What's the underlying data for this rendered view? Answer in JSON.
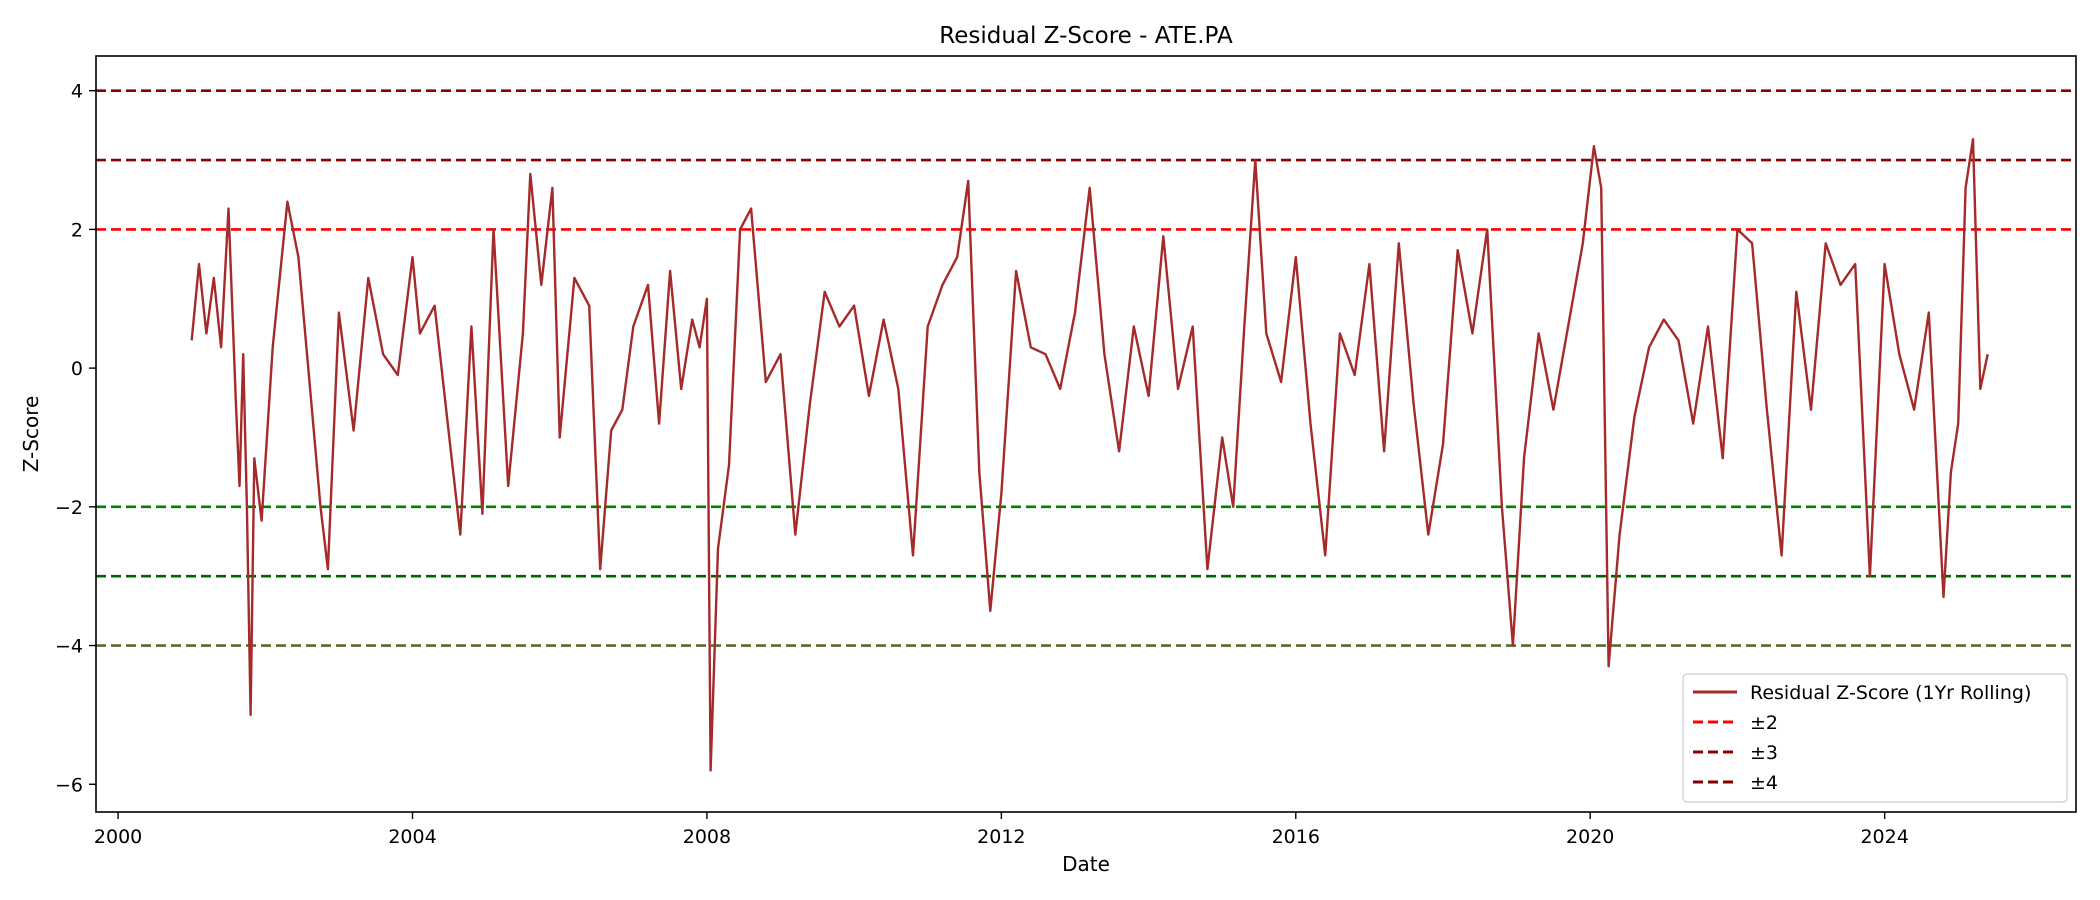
{
  "chart_data": {
    "type": "line",
    "title": "Residual Z-Score - ATE.PA",
    "xlabel": "Date",
    "ylabel": "Z-Score",
    "xlim": [
      1999.7,
      2026.6
    ],
    "ylim": [
      -6.4,
      4.5
    ],
    "x_ticks": [
      2000,
      2004,
      2008,
      2012,
      2016,
      2020,
      2024
    ],
    "y_ticks": [
      -6,
      -4,
      -2,
      0,
      2,
      4
    ],
    "y_tick_labels": [
      "−6",
      "−4",
      "−2",
      "0",
      "2",
      "4"
    ],
    "grid": false,
    "legend_placement": "lower-right",
    "series": [
      {
        "name": "Residual Z-Score (1Yr Rolling)",
        "color": "#a52a2a",
        "x": [
          2001.0,
          2001.1,
          2001.2,
          2001.3,
          2001.4,
          2001.5,
          2001.6,
          2001.65,
          2001.7,
          2001.75,
          2001.8,
          2001.85,
          2001.95,
          2002.1,
          2002.3,
          2002.45,
          2002.6,
          2002.75,
          2002.85,
          2003.0,
          2003.2,
          2003.4,
          2003.6,
          2003.8,
          2004.0,
          2004.1,
          2004.3,
          2004.5,
          2004.65,
          2004.8,
          2004.95,
          2005.1,
          2005.3,
          2005.5,
          2005.6,
          2005.75,
          2005.9,
          2006.0,
          2006.2,
          2006.4,
          2006.55,
          2006.7,
          2006.85,
          2007.0,
          2007.2,
          2007.35,
          2007.5,
          2007.65,
          2007.8,
          2007.9,
          2008.0,
          2008.05,
          2008.15,
          2008.3,
          2008.45,
          2008.6,
          2008.8,
          2009.0,
          2009.2,
          2009.4,
          2009.6,
          2009.8,
          2010.0,
          2010.2,
          2010.4,
          2010.6,
          2010.8,
          2011.0,
          2011.2,
          2011.4,
          2011.55,
          2011.7,
          2011.85,
          2012.0,
          2012.2,
          2012.4,
          2012.6,
          2012.8,
          2013.0,
          2013.2,
          2013.4,
          2013.6,
          2013.8,
          2014.0,
          2014.2,
          2014.4,
          2014.6,
          2014.8,
          2015.0,
          2015.15,
          2015.3,
          2015.45,
          2015.6,
          2015.8,
          2016.0,
          2016.2,
          2016.4,
          2016.6,
          2016.8,
          2017.0,
          2017.2,
          2017.4,
          2017.6,
          2017.8,
          2018.0,
          2018.2,
          2018.4,
          2018.6,
          2018.8,
          2018.95,
          2019.1,
          2019.3,
          2019.5,
          2019.7,
          2019.9,
          2020.05,
          2020.15,
          2020.25,
          2020.4,
          2020.6,
          2020.8,
          2021.0,
          2021.2,
          2021.4,
          2021.6,
          2021.8,
          2022.0,
          2022.2,
          2022.4,
          2022.6,
          2022.8,
          2023.0,
          2023.2,
          2023.4,
          2023.6,
          2023.8,
          2024.0,
          2024.2,
          2024.4,
          2024.6,
          2024.8,
          2024.9,
          2025.0,
          2025.1,
          2025.2,
          2025.3,
          2025.4
        ],
        "y": [
          0.4,
          1.5,
          0.5,
          1.3,
          0.3,
          2.3,
          -0.5,
          -1.7,
          0.2,
          -2.0,
          -5.0,
          -1.3,
          -2.2,
          0.3,
          2.4,
          1.6,
          -0.2,
          -2.0,
          -2.9,
          0.8,
          -0.9,
          1.3,
          0.2,
          -0.1,
          1.6,
          0.5,
          0.9,
          -1.0,
          -2.4,
          0.6,
          -2.1,
          2.0,
          -1.7,
          0.5,
          2.8,
          1.2,
          2.6,
          -1.0,
          1.3,
          0.9,
          -2.9,
          -0.9,
          -0.6,
          0.6,
          1.2,
          -0.8,
          1.4,
          -0.3,
          0.7,
          0.3,
          1.0,
          -5.8,
          -2.6,
          -1.4,
          2.0,
          2.3,
          -0.2,
          0.2,
          -2.4,
          -0.5,
          1.1,
          0.6,
          0.9,
          -0.4,
          0.7,
          -0.3,
          -2.7,
          0.6,
          1.2,
          1.6,
          2.7,
          -1.5,
          -3.5,
          -1.8,
          1.4,
          0.3,
          0.2,
          -0.3,
          0.8,
          2.6,
          0.2,
          -1.2,
          0.6,
          -0.4,
          1.9,
          -0.3,
          0.6,
          -2.9,
          -1.0,
          -2.0,
          0.6,
          3.0,
          0.5,
          -0.2,
          1.6,
          -0.8,
          -2.7,
          0.5,
          -0.1,
          1.5,
          -1.2,
          1.8,
          -0.5,
          -2.4,
          -1.1,
          1.7,
          0.5,
          2.0,
          -2.0,
          -4.0,
          -1.3,
          0.5,
          -0.6,
          0.6,
          1.8,
          3.2,
          2.6,
          -4.3,
          -2.4,
          -0.7,
          0.3,
          0.7,
          0.4,
          -0.8,
          0.6,
          -1.3,
          2.0,
          1.8,
          -0.6,
          -2.7,
          1.1,
          -0.6,
          1.8,
          1.2,
          1.5,
          -3.0,
          1.5,
          0.2,
          -0.6,
          0.8,
          -3.3,
          -1.5,
          -0.8,
          2.6,
          3.3,
          -0.3,
          0.2
        ]
      },
      {
        "name": "±2",
        "color": "#ff0000",
        "y_values": [
          2,
          -2
        ],
        "line_colors": [
          "#ff0000",
          "#008000"
        ]
      },
      {
        "name": "±3",
        "color": "#8b0000",
        "y_values": [
          3,
          -3
        ],
        "line_colors": [
          "#8b0000",
          "#006400"
        ]
      },
      {
        "name": "±4",
        "color": "#800000",
        "y_values": [
          4,
          -4
        ],
        "line_colors": [
          "#8b0000",
          "#556b2f"
        ]
      }
    ]
  }
}
